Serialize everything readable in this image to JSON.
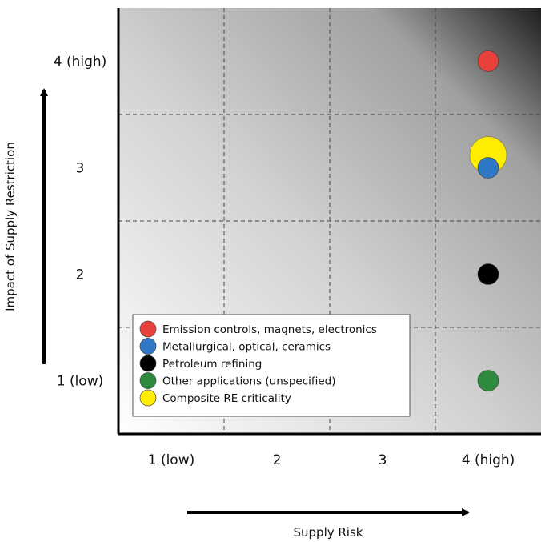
{
  "chart_data": {
    "type": "scatter",
    "title": "",
    "xlabel": "Supply Risk",
    "ylabel": "Impact of Supply Restriction",
    "x_ticks": [
      "1 (low)",
      "2",
      "3",
      "4 (high)"
    ],
    "y_ticks": [
      "1 (low)",
      "2",
      "3",
      "4 (high)"
    ],
    "xlim": [
      0.5,
      4.5
    ],
    "ylim": [
      0.5,
      4.5
    ],
    "grid": true,
    "legend_position": "bottom-left",
    "series": [
      {
        "name": "Emission controls, magnets, electronics",
        "color": "#e8403a",
        "x": 4,
        "y": 4
      },
      {
        "name": "Metallurgical, optical, ceramics",
        "color": "#2f78c7",
        "x": 4,
        "y": 3
      },
      {
        "name": "Petroleum refining",
        "color": "#000000",
        "x": 4,
        "y": 2
      },
      {
        "name": "Other applications (unspecified)",
        "color": "#2e8b3e",
        "x": 4,
        "y": 1
      },
      {
        "name": "Composite RE criticality",
        "color": "#ffee00",
        "x": 4,
        "y": 3.12
      }
    ]
  }
}
